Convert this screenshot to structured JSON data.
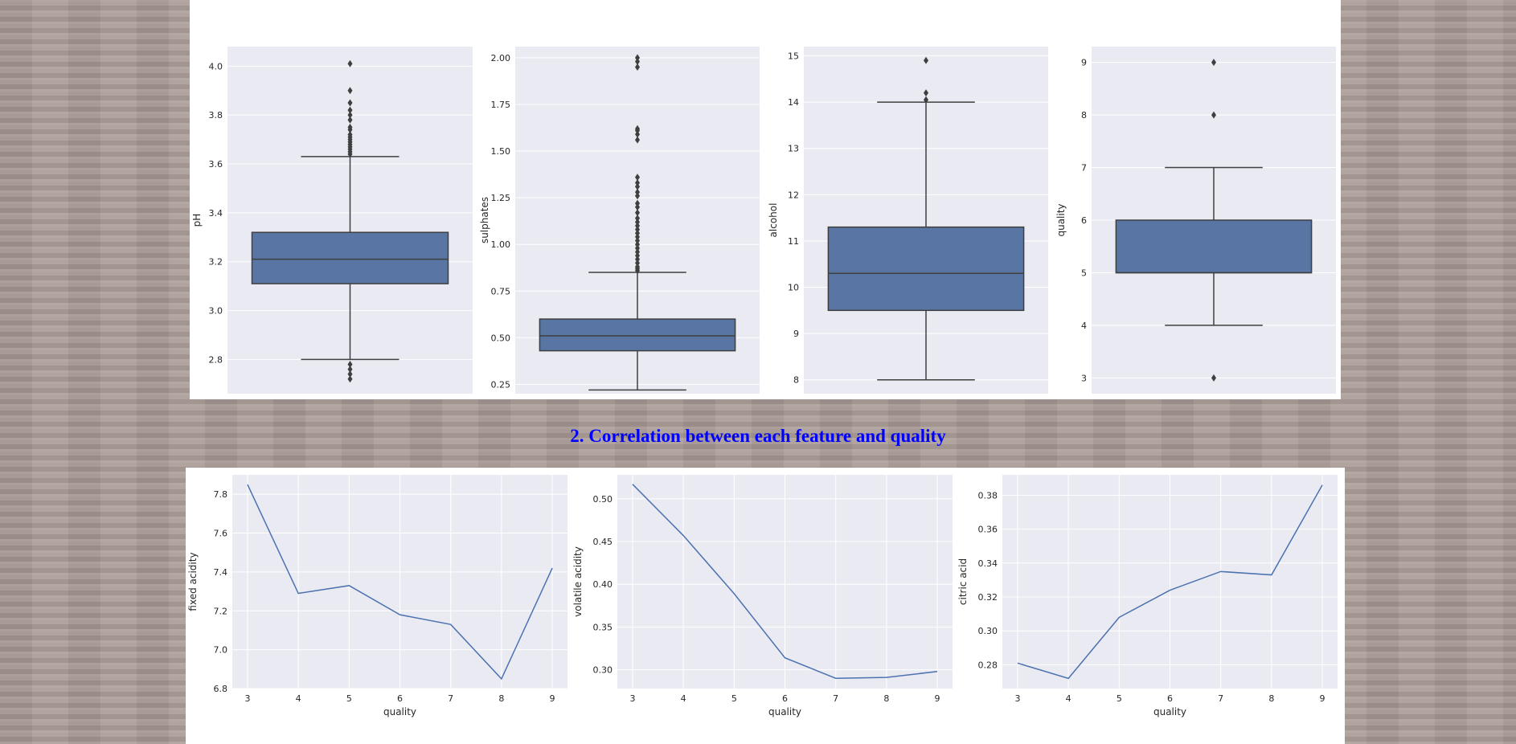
{
  "section_heading": "2. Correlation between each feature and quality",
  "colors": {
    "plot_background": "#eaeaf2",
    "grid": "#ffffff",
    "box_fill": "#5875a4",
    "box_line": "#3f3f3f",
    "line": "#4c72b0",
    "heading": "#0000ff"
  },
  "chart_data": [
    {
      "type": "box",
      "ylabel": "pH",
      "ylim": [
        2.66,
        4.08
      ],
      "yticks": [
        "2.8",
        "3.0",
        "3.2",
        "3.4",
        "3.6",
        "3.8",
        "4.0"
      ],
      "stats": {
        "whisker_low": 2.8,
        "q1": 3.11,
        "median": 3.21,
        "q3": 3.32,
        "whisker_high": 3.63
      },
      "outliers": [
        2.72,
        2.74,
        2.76,
        2.78,
        3.64,
        3.65,
        3.66,
        3.67,
        3.68,
        3.69,
        3.7,
        3.71,
        3.72,
        3.74,
        3.75,
        3.78,
        3.8,
        3.82,
        3.85,
        3.9,
        4.01
      ]
    },
    {
      "type": "box",
      "ylabel": "sulphates",
      "ylim": [
        0.2,
        2.06
      ],
      "yticks": [
        "0.25",
        "0.50",
        "0.75",
        "1.00",
        "1.25",
        "1.50",
        "1.75",
        "2.00"
      ],
      "stats": {
        "whisker_low": 0.22,
        "q1": 0.43,
        "median": 0.51,
        "q3": 0.6,
        "whisker_high": 0.85
      },
      "outliers": [
        0.86,
        0.87,
        0.88,
        0.9,
        0.92,
        0.94,
        0.96,
        0.98,
        1.0,
        1.02,
        1.04,
        1.06,
        1.08,
        1.1,
        1.12,
        1.14,
        1.17,
        1.2,
        1.22,
        1.26,
        1.28,
        1.31,
        1.33,
        1.36,
        1.56,
        1.59,
        1.61,
        1.62,
        1.95,
        1.98,
        2.0
      ]
    },
    {
      "type": "box",
      "ylabel": "alcohol",
      "ylim": [
        7.7,
        15.2
      ],
      "yticks": [
        "8",
        "9",
        "10",
        "11",
        "12",
        "13",
        "14",
        "15"
      ],
      "stats": {
        "whisker_low": 8.0,
        "q1": 9.5,
        "median": 10.3,
        "q3": 11.3,
        "whisker_high": 14.0
      },
      "outliers": [
        14.05,
        14.2,
        14.9
      ]
    },
    {
      "type": "box",
      "ylabel": "quality",
      "ylim": [
        2.7,
        9.3
      ],
      "yticks": [
        "3",
        "4",
        "5",
        "6",
        "7",
        "8",
        "9"
      ],
      "stats": {
        "whisker_low": 4,
        "q1": 5,
        "median": 5,
        "q3": 6,
        "whisker_high": 7
      },
      "outliers": [
        3,
        8,
        9
      ]
    },
    {
      "type": "line",
      "xlabel": "quality",
      "ylabel": "fixed acidity",
      "x": [
        3,
        4,
        5,
        6,
        7,
        8,
        9
      ],
      "values": [
        7.85,
        7.29,
        7.33,
        7.18,
        7.13,
        6.85,
        7.42
      ],
      "xlim": [
        2.7,
        9.3
      ],
      "ylim": [
        6.8,
        7.9
      ],
      "yticks": [
        "6.8",
        "7.0",
        "7.2",
        "7.4",
        "7.6",
        "7.8"
      ]
    },
    {
      "type": "line",
      "xlabel": "quality",
      "ylabel": "volatile acidity",
      "x": [
        3,
        4,
        5,
        6,
        7,
        8,
        9
      ],
      "values": [
        0.517,
        0.457,
        0.389,
        0.314,
        0.29,
        0.291,
        0.298
      ],
      "xlim": [
        2.7,
        9.3
      ],
      "ylim": [
        0.278,
        0.528
      ],
      "yticks": [
        "0.30",
        "0.35",
        "0.40",
        "0.45",
        "0.50"
      ]
    },
    {
      "type": "line",
      "xlabel": "quality",
      "ylabel": "citric acid",
      "x": [
        3,
        4,
        5,
        6,
        7,
        8,
        9
      ],
      "values": [
        0.281,
        0.272,
        0.308,
        0.324,
        0.335,
        0.333,
        0.386
      ],
      "xlim": [
        2.7,
        9.3
      ],
      "ylim": [
        0.266,
        0.392
      ],
      "yticks": [
        "0.28",
        "0.30",
        "0.32",
        "0.34",
        "0.36",
        "0.38"
      ]
    }
  ]
}
